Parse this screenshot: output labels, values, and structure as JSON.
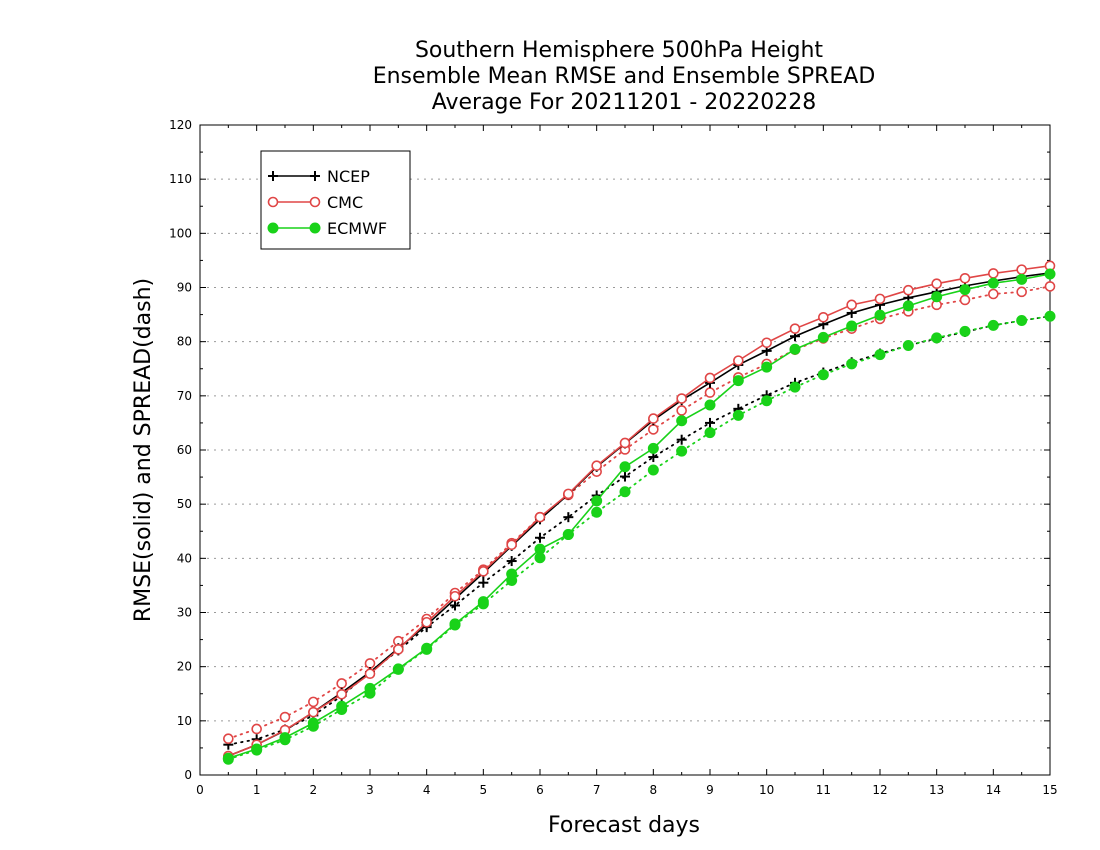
{
  "chart_data": {
    "type": "line",
    "title": [
      "Southern Hemisphere 500hPa Height",
      "Ensemble Mean RMSE and Ensemble SPREAD",
      "Average For 20211201 - 20220228"
    ],
    "xlabel": "Forecast days",
    "ylabel": "RMSE(solid) and SPREAD(dash)",
    "xlim": [
      0,
      15
    ],
    "ylim": [
      0,
      120
    ],
    "xticks": [
      "0",
      "1",
      "2",
      "3",
      "4",
      "5",
      "6",
      "7",
      "8",
      "9",
      "10",
      "11",
      "12",
      "13",
      "14",
      "15"
    ],
    "yticks": [
      "0",
      "10",
      "20",
      "30",
      "40",
      "50",
      "60",
      "70",
      "80",
      "90",
      "100",
      "110",
      "120"
    ],
    "grid": true,
    "legend_position": "top-left",
    "x": [
      0.5,
      1,
      1.5,
      2,
      2.5,
      3,
      3.5,
      4,
      4.5,
      5,
      5.5,
      6,
      6.5,
      7,
      7.5,
      8,
      8.5,
      9,
      9.5,
      10,
      10.5,
      11,
      11.5,
      12,
      12.5,
      13,
      13.5,
      14,
      14.5,
      15
    ],
    "series": [
      {
        "name": "NCEP",
        "color": "#000000",
        "marker": "plus",
        "rmse": [
          3.5,
          5.6,
          8.2,
          11.6,
          15.2,
          19.0,
          23.4,
          27.7,
          32.5,
          37.3,
          42.3,
          47.2,
          51.8,
          56.9,
          61.2,
          65.5,
          69.2,
          72.4,
          75.7,
          78.3,
          81.0,
          83.2,
          85.3,
          86.8,
          88.1,
          89.2,
          90.3,
          91.2,
          92.0,
          92.7
        ],
        "spread": [
          5.6,
          6.6,
          8.4,
          11.0,
          14.6,
          19.0,
          23.0,
          27.3,
          31.3,
          35.5,
          39.5,
          43.8,
          47.6,
          51.6,
          55.1,
          58.7,
          61.9,
          65.0,
          67.6,
          70.1,
          72.4,
          74.3,
          76.2,
          77.8,
          79.3,
          80.6,
          81.8,
          83.0,
          83.9,
          84.7
        ]
      },
      {
        "name": "CMC",
        "color": "#e04646",
        "marker": "open-circle",
        "rmse": [
          3.5,
          5.6,
          8.3,
          11.6,
          14.9,
          18.7,
          23.2,
          28.2,
          33.0,
          37.6,
          42.5,
          47.6,
          51.9,
          57.1,
          61.3,
          65.8,
          69.5,
          73.3,
          76.5,
          79.8,
          82.4,
          84.5,
          86.8,
          87.9,
          89.5,
          90.7,
          91.7,
          92.6,
          93.3,
          94.0
        ],
        "spread": [
          6.7,
          8.5,
          10.7,
          13.5,
          16.9,
          20.6,
          24.7,
          28.8,
          33.6,
          37.9,
          42.8,
          47.6,
          51.7,
          56.0,
          60.1,
          63.8,
          67.3,
          70.6,
          73.4,
          75.9,
          78.5,
          80.6,
          82.4,
          84.2,
          85.6,
          86.8,
          87.7,
          88.8,
          89.2,
          90.2
        ]
      },
      {
        "name": "ECMWF",
        "color": "#19d219",
        "marker": "filled-circle",
        "rmse": [
          3.1,
          4.8,
          6.9,
          9.6,
          12.7,
          16.0,
          19.6,
          23.4,
          27.9,
          32.0,
          37.1,
          41.7,
          44.4,
          50.6,
          56.9,
          60.3,
          65.4,
          68.3,
          72.8,
          75.3,
          78.6,
          80.8,
          82.9,
          84.9,
          86.6,
          88.3,
          89.6,
          90.8,
          91.5,
          92.5
        ],
        "spread": [
          2.9,
          4.6,
          6.5,
          9.0,
          12.1,
          15.1,
          19.5,
          23.2,
          27.7,
          31.6,
          35.9,
          40.1,
          44.4,
          48.5,
          52.3,
          56.3,
          59.8,
          63.2,
          66.4,
          69.1,
          71.6,
          73.9,
          75.9,
          77.6,
          79.3,
          80.7,
          81.9,
          83.0,
          83.9,
          84.7
        ]
      }
    ]
  }
}
